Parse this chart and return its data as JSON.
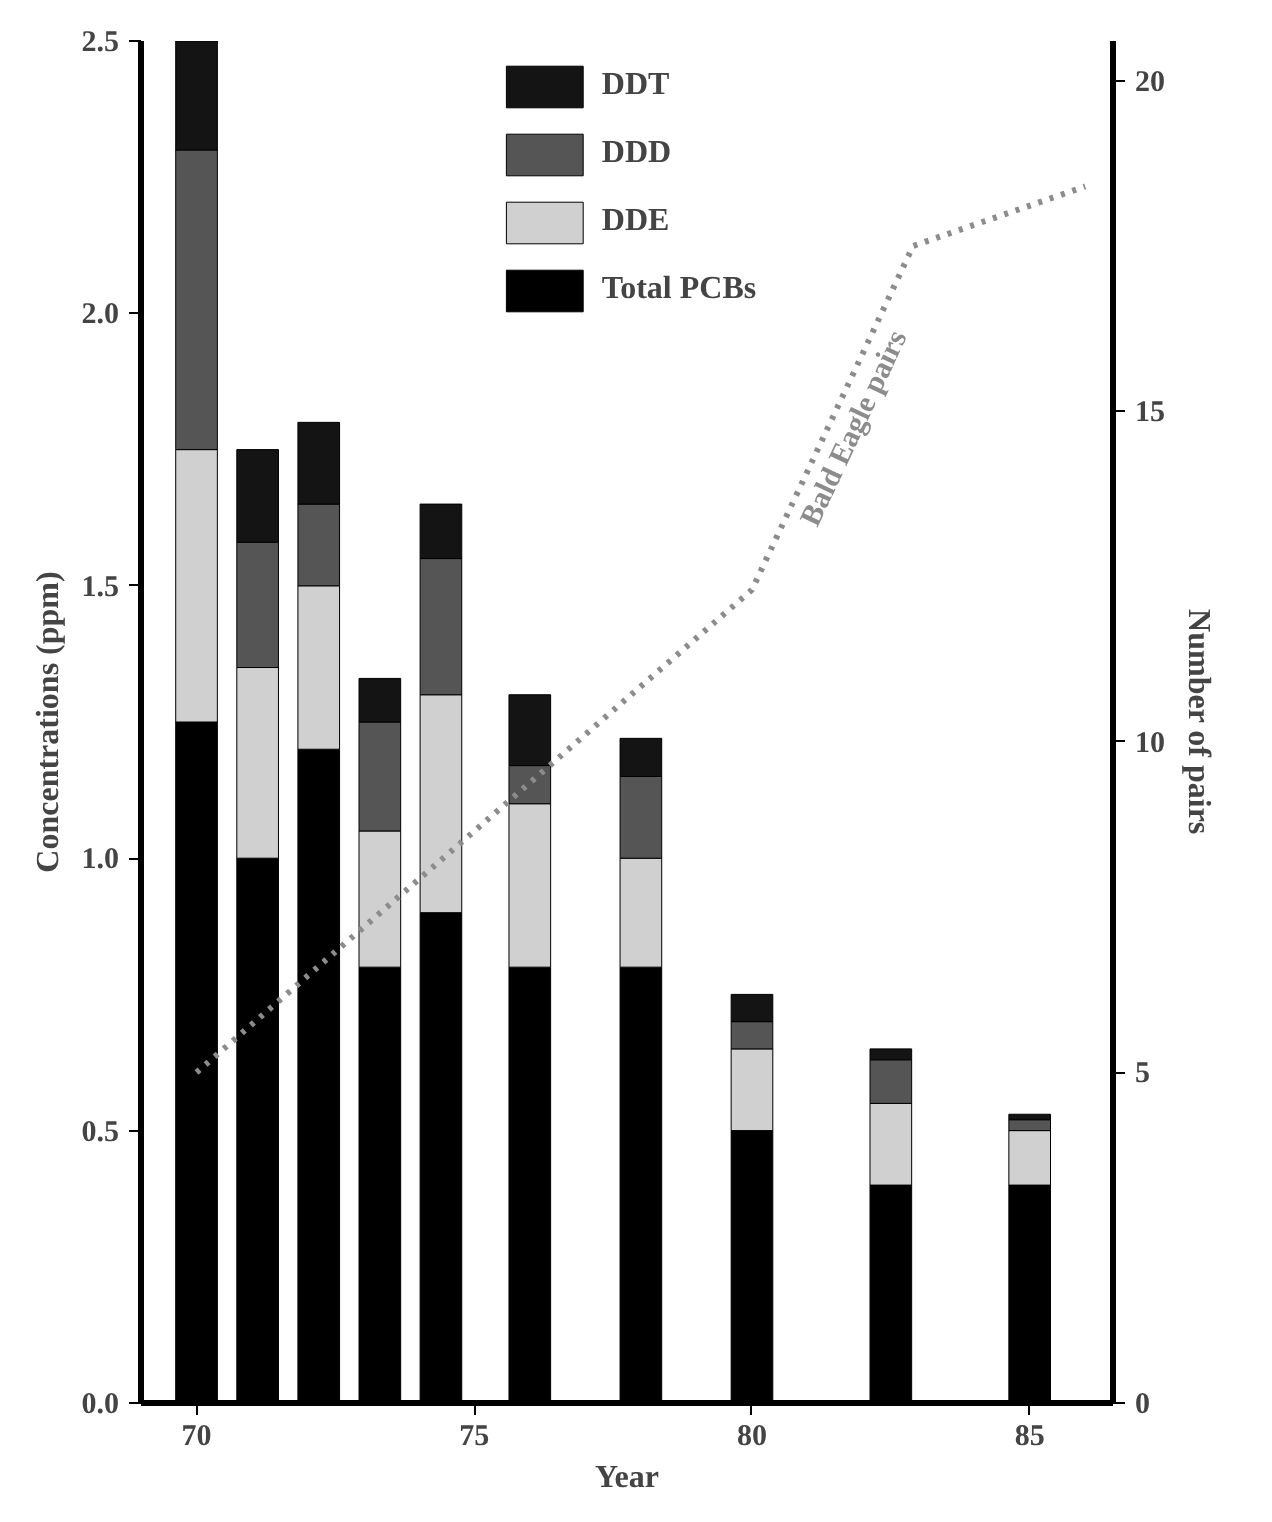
{
  "chart_data": {
    "type": "bar",
    "stacked": true,
    "xlabel": "Year",
    "ylabel": "Concentrations (ppm)",
    "y2label": "Number of pairs",
    "x": [
      70,
      71.1,
      72.2,
      73.3,
      74.4,
      76,
      78,
      80,
      82.5,
      85
    ],
    "series": [
      {
        "name": "Total PCBs",
        "color": "#000000",
        "values": [
          1.25,
          1.0,
          1.2,
          0.8,
          0.9,
          0.8,
          0.8,
          0.5,
          0.4,
          0.4
        ]
      },
      {
        "name": "DDE",
        "color": "#d0d0d0",
        "values": [
          0.5,
          0.35,
          0.3,
          0.25,
          0.4,
          0.3,
          0.2,
          0.15,
          0.15,
          0.1
        ]
      },
      {
        "name": "DDD",
        "color": "#555555",
        "values": [
          0.55,
          0.23,
          0.15,
          0.2,
          0.25,
          0.07,
          0.15,
          0.05,
          0.08,
          0.02
        ]
      },
      {
        "name": "DDT",
        "color": "#141414",
        "values": [
          0.2,
          0.17,
          0.15,
          0.08,
          0.1,
          0.13,
          0.07,
          0.05,
          0.02,
          0.01
        ]
      },
      {
        "name": "Bald Eagle pairs",
        "type": "line",
        "axis": "y2",
        "color": "#8c8c8c",
        "line_style": "dotted",
        "x": [
          70,
          80,
          82.9,
          86
        ],
        "values": [
          5,
          12.3,
          17.5,
          18.4
        ]
      }
    ],
    "xlim": [
      69,
      86.5
    ],
    "xticks": [
      70,
      75,
      80,
      85
    ],
    "ylim": [
      0,
      2.5
    ],
    "yticks": [
      {
        "value": 0,
        "label": "0.0"
      },
      0.5,
      {
        "value": 1,
        "label": "1.0"
      },
      1.5,
      {
        "value": 2,
        "label": "2.0"
      },
      2.5
    ],
    "y2lim": [
      0,
      20.6
    ],
    "y2ticks": [
      0,
      5,
      10,
      15,
      20
    ],
    "grid": false,
    "legend": "top"
  }
}
